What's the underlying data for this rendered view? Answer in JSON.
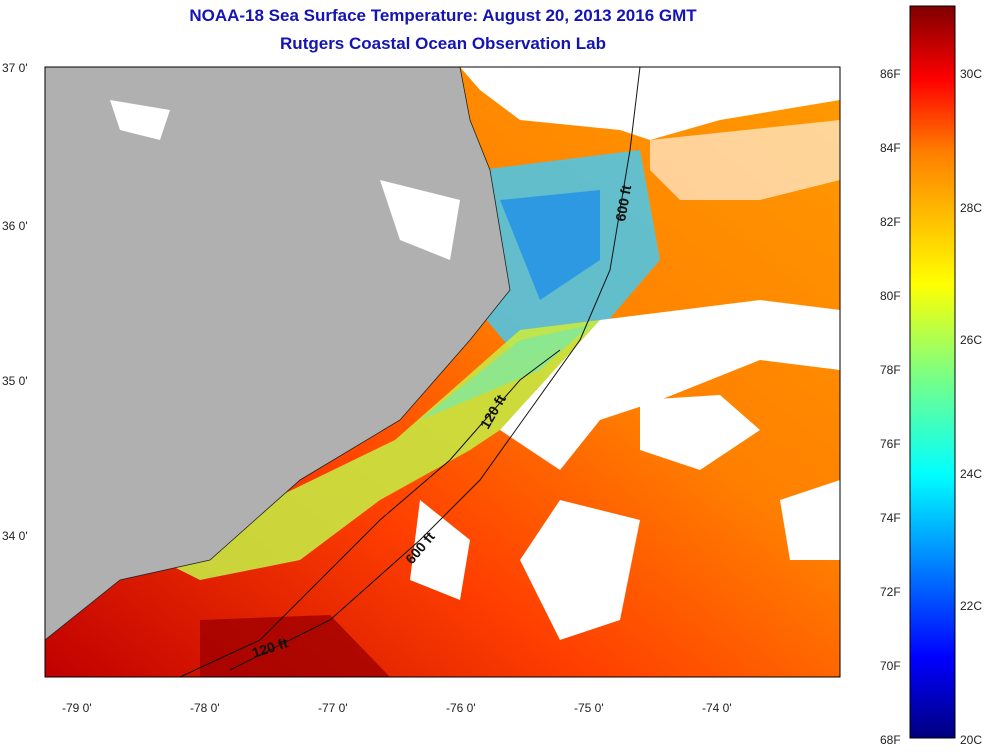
{
  "title": {
    "line1": "NOAA-18 Sea Surface Temperature:  August 20, 2013 2016 GMT",
    "line2": "Rutgers Coastal Ocean Observation Lab"
  },
  "map": {
    "lat_labels": [
      "37 0'",
      "36 0'",
      "35 0'",
      "34 0'"
    ],
    "lon_labels": [
      "-79 0'",
      "-78 0'",
      "-77 0'",
      "-76 0'",
      "-75 0'",
      "-74 0'"
    ],
    "land_color": "#b0b0b0",
    "cloud_color": "#ffffff",
    "contour_labels": [
      "600 ft",
      "120 ft",
      "600 ft",
      "120 ft"
    ]
  },
  "colorbar": {
    "fahrenheit": [
      "86F",
      "84F",
      "82F",
      "80F",
      "78F",
      "76F",
      "74F",
      "72F",
      "70F",
      "68F"
    ],
    "celsius": [
      "30C",
      "28C",
      "26C",
      "24C",
      "22C",
      "20C"
    ],
    "colors": [
      "#00007f",
      "#0000ff",
      "#007fff",
      "#00ffff",
      "#7fff7f",
      "#ffff00",
      "#ff7f00",
      "#ff0000",
      "#7f0000"
    ]
  }
}
